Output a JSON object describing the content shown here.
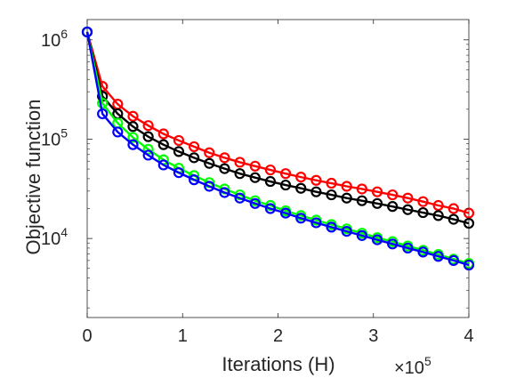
{
  "chart_data": {
    "type": "line",
    "title": "",
    "xlabel": "Iterations (H)",
    "ylabel": "Objective function",
    "x_multiplier_label": {
      "base": "×10",
      "exponent": "5"
    },
    "xlim": [
      0,
      400000
    ],
    "ylim": [
      1600,
      1600000
    ],
    "yscale": "log",
    "grid": false,
    "legend": "none",
    "xticks": [
      {
        "value": 0,
        "label": "0"
      },
      {
        "value": 100000,
        "label": "1"
      },
      {
        "value": 200000,
        "label": "2"
      },
      {
        "value": 300000,
        "label": "3"
      },
      {
        "value": 400000,
        "label": "4"
      }
    ],
    "yticks": [
      {
        "value": 10000,
        "base": "10",
        "exp": "4"
      },
      {
        "value": 100000,
        "base": "10",
        "exp": "5"
      },
      {
        "value": 1000000,
        "base": "10",
        "exp": "6"
      }
    ],
    "x": [
      0,
      16000,
      32000,
      48000,
      64000,
      80000,
      96000,
      112000,
      128000,
      144000,
      160000,
      176000,
      192000,
      208000,
      224000,
      240000,
      256000,
      272000,
      288000,
      304000,
      320000,
      336000,
      352000,
      368000,
      384000,
      400000
    ],
    "series": [
      {
        "color": "#ff0000",
        "values": [
          1200000,
          340000,
          225000,
          170000,
          137000,
          113000,
          97000,
          84000,
          73000,
          65000,
          58500,
          53500,
          49000,
          45000,
          41500,
          38500,
          36000,
          33500,
          31500,
          29500,
          27500,
          25500,
          23500,
          21500,
          20000,
          18000
        ]
      },
      {
        "color": "#000000",
        "values": [
          1200000,
          270000,
          180000,
          134000,
          106000,
          88000,
          75000,
          65000,
          57000,
          50500,
          45000,
          41000,
          37500,
          34500,
          32000,
          29500,
          27500,
          25500,
          24000,
          22500,
          21000,
          19500,
          18200,
          17000,
          15600,
          14200
        ]
      },
      {
        "color": "#00ff00",
        "values": [
          1200000,
          230000,
          145000,
          104000,
          79000,
          62000,
          51000,
          43000,
          36500,
          31500,
          27500,
          24000,
          21500,
          19000,
          17000,
          15300,
          13800,
          12500,
          11300,
          10200,
          9300,
          8400,
          7600,
          6900,
          6200,
          5600
        ]
      },
      {
        "color": "#0000ff",
        "values": [
          1200000,
          180000,
          118000,
          88000,
          69000,
          55000,
          46000,
          39000,
          33500,
          29000,
          25500,
          22500,
          20000,
          18000,
          16000,
          14400,
          13000,
          11800,
          10700,
          9700,
          8800,
          8000,
          7300,
          6600,
          6000,
          5400
        ]
      }
    ]
  }
}
